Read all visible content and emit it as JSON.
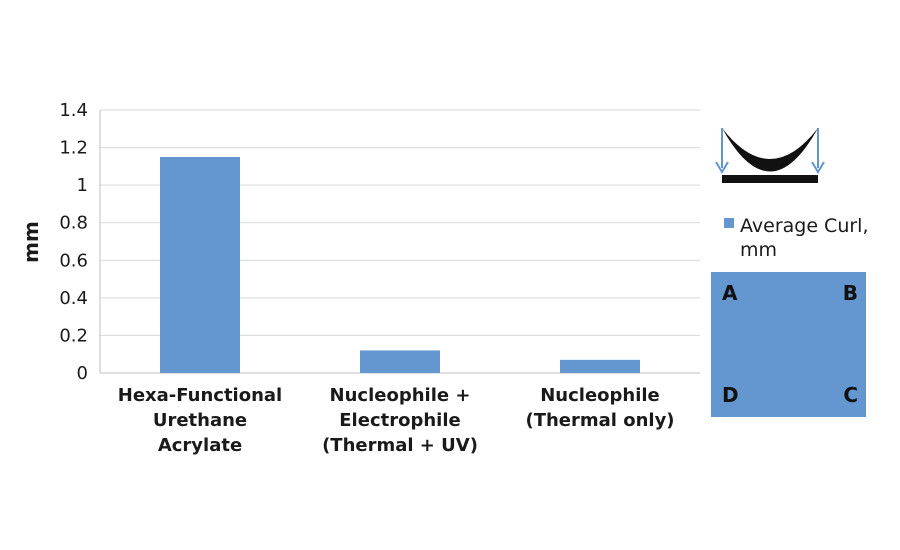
{
  "colors": {
    "bar": "#6497cf",
    "grid": "#d9d9d9",
    "axis": "#bfbfbf",
    "ink": "#111111"
  },
  "chart_data": {
    "type": "bar",
    "ylabel": "mm",
    "xlabel": "",
    "ylim": [
      0,
      1.4
    ],
    "yticks": [
      "0",
      "0.2",
      "0.4",
      "0.6",
      "0.8",
      "1",
      "1.2",
      "1.4"
    ],
    "grid": true,
    "legend_position": "right",
    "categories": [
      [
        "Hexa-Functional",
        "Urethane",
        "Acrylate"
      ],
      [
        "Nucleophile +",
        "Electrophile",
        "(Thermal + UV)"
      ],
      [
        "Nucleophile",
        "(Thermal only)"
      ]
    ],
    "series": [
      {
        "name": "Average Curl, mm",
        "name_lines": [
          "Average Curl,",
          "mm"
        ],
        "values": [
          1.15,
          0.12,
          0.07
        ]
      }
    ]
  },
  "sample_diagram": {
    "corners": {
      "top_left": "A",
      "top_right": "B",
      "bottom_left": "D",
      "bottom_right": "C"
    }
  }
}
